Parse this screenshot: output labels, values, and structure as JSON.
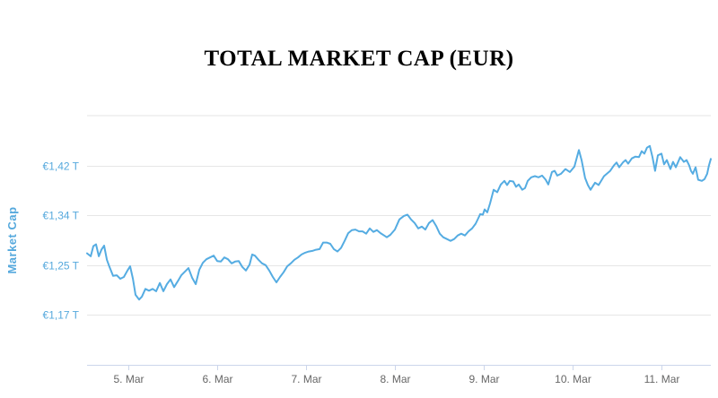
{
  "title": "TOTAL MARKET CAP (EUR)",
  "colors": {
    "line": "#55ACE2",
    "y_label_text": "#56A9DD",
    "x_label_text": "#666666",
    "gridline": "#e6e6e6",
    "axis_line": "#ccd6eb",
    "title_text": "#000000",
    "background": "#ffffff"
  },
  "chart_data": {
    "type": "line",
    "title": "TOTAL MARKET CAP (EUR)",
    "ylabel": "Market Cap",
    "xlabel": "",
    "unit": "EUR trillions",
    "grid": true,
    "legend": "none",
    "ylim": [
      1.084,
      1.504
    ],
    "xlim": [
      -0.465,
      6.556
    ],
    "y_ticks": [
      {
        "label": "€1,17 T",
        "value": 1.168
      },
      {
        "label": "€1,25 T",
        "value": 1.252
      },
      {
        "label": "€1,34 T",
        "value": 1.336
      },
      {
        "label": "€1,42 T",
        "value": 1.42
      }
    ],
    "x_ticks": [
      {
        "label": "5. Mar",
        "value": 0
      },
      {
        "label": "6. Mar",
        "value": 1
      },
      {
        "label": "7. Mar",
        "value": 2
      },
      {
        "label": "8. Mar",
        "value": 3
      },
      {
        "label": "9. Mar",
        "value": 4
      },
      {
        "label": "10. Mar",
        "value": 5
      },
      {
        "label": "11. Mar",
        "value": 6
      }
    ],
    "x_unit": "days since 5 Mar 00:00",
    "points": [
      [
        -0.465,
        1.272
      ],
      [
        -0.424,
        1.267
      ],
      [
        -0.394,
        1.284
      ],
      [
        -0.364,
        1.287
      ],
      [
        -0.333,
        1.267
      ],
      [
        -0.303,
        1.278
      ],
      [
        -0.273,
        1.285
      ],
      [
        -0.242,
        1.261
      ],
      [
        -0.212,
        1.249
      ],
      [
        -0.172,
        1.234
      ],
      [
        -0.131,
        1.235
      ],
      [
        -0.091,
        1.229
      ],
      [
        -0.051,
        1.232
      ],
      [
        -0.01,
        1.243
      ],
      [
        0.02,
        1.25
      ],
      [
        0.051,
        1.229
      ],
      [
        0.081,
        1.202
      ],
      [
        0.121,
        1.194
      ],
      [
        0.152,
        1.199
      ],
      [
        0.192,
        1.212
      ],
      [
        0.232,
        1.209
      ],
      [
        0.273,
        1.212
      ],
      [
        0.313,
        1.208
      ],
      [
        0.354,
        1.222
      ],
      [
        0.394,
        1.208
      ],
      [
        0.434,
        1.22
      ],
      [
        0.475,
        1.228
      ],
      [
        0.515,
        1.215
      ],
      [
        0.556,
        1.225
      ],
      [
        0.596,
        1.235
      ],
      [
        0.636,
        1.241
      ],
      [
        0.677,
        1.247
      ],
      [
        0.717,
        1.231
      ],
      [
        0.758,
        1.22
      ],
      [
        0.798,
        1.244
      ],
      [
        0.838,
        1.256
      ],
      [
        0.879,
        1.262
      ],
      [
        0.919,
        1.265
      ],
      [
        0.96,
        1.268
      ],
      [
        1.0,
        1.259
      ],
      [
        1.04,
        1.258
      ],
      [
        1.081,
        1.265
      ],
      [
        1.121,
        1.262
      ],
      [
        1.162,
        1.255
      ],
      [
        1.202,
        1.258
      ],
      [
        1.242,
        1.259
      ],
      [
        1.283,
        1.249
      ],
      [
        1.323,
        1.243
      ],
      [
        1.364,
        1.253
      ],
      [
        1.394,
        1.27
      ],
      [
        1.424,
        1.268
      ],
      [
        1.465,
        1.261
      ],
      [
        1.505,
        1.255
      ],
      [
        1.545,
        1.252
      ],
      [
        1.586,
        1.243
      ],
      [
        1.626,
        1.232
      ],
      [
        1.667,
        1.223
      ],
      [
        1.707,
        1.232
      ],
      [
        1.747,
        1.24
      ],
      [
        1.788,
        1.25
      ],
      [
        1.828,
        1.255
      ],
      [
        1.869,
        1.261
      ],
      [
        1.909,
        1.265
      ],
      [
        1.949,
        1.27
      ],
      [
        1.99,
        1.273
      ],
      [
        2.03,
        1.275
      ],
      [
        2.071,
        1.276
      ],
      [
        2.111,
        1.278
      ],
      [
        2.152,
        1.279
      ],
      [
        2.192,
        1.29
      ],
      [
        2.232,
        1.29
      ],
      [
        2.273,
        1.288
      ],
      [
        2.313,
        1.279
      ],
      [
        2.354,
        1.275
      ],
      [
        2.394,
        1.281
      ],
      [
        2.434,
        1.293
      ],
      [
        2.475,
        1.306
      ],
      [
        2.515,
        1.311
      ],
      [
        2.556,
        1.312
      ],
      [
        2.596,
        1.309
      ],
      [
        2.636,
        1.309
      ],
      [
        2.677,
        1.305
      ],
      [
        2.717,
        1.314
      ],
      [
        2.758,
        1.308
      ],
      [
        2.798,
        1.311
      ],
      [
        2.838,
        1.306
      ],
      [
        2.879,
        1.302
      ],
      [
        2.909,
        1.299
      ],
      [
        2.949,
        1.303
      ],
      [
        3.0,
        1.312
      ],
      [
        3.051,
        1.329
      ],
      [
        3.101,
        1.335
      ],
      [
        3.141,
        1.337
      ],
      [
        3.182,
        1.329
      ],
      [
        3.222,
        1.323
      ],
      [
        3.263,
        1.314
      ],
      [
        3.303,
        1.317
      ],
      [
        3.343,
        1.312
      ],
      [
        3.384,
        1.323
      ],
      [
        3.424,
        1.328
      ],
      [
        3.465,
        1.318
      ],
      [
        3.505,
        1.305
      ],
      [
        3.545,
        1.299
      ],
      [
        3.586,
        1.296
      ],
      [
        3.626,
        1.293
      ],
      [
        3.667,
        1.296
      ],
      [
        3.707,
        1.302
      ],
      [
        3.747,
        1.305
      ],
      [
        3.788,
        1.302
      ],
      [
        3.828,
        1.309
      ],
      [
        3.869,
        1.314
      ],
      [
        3.909,
        1.322
      ],
      [
        3.939,
        1.331
      ],
      [
        3.96,
        1.338
      ],
      [
        3.99,
        1.337
      ],
      [
        4.01,
        1.346
      ],
      [
        4.04,
        1.341
      ],
      [
        4.071,
        1.356
      ],
      [
        4.111,
        1.379
      ],
      [
        4.152,
        1.375
      ],
      [
        4.192,
        1.388
      ],
      [
        4.232,
        1.394
      ],
      [
        4.263,
        1.387
      ],
      [
        4.293,
        1.394
      ],
      [
        4.333,
        1.393
      ],
      [
        4.364,
        1.384
      ],
      [
        4.394,
        1.388
      ],
      [
        4.434,
        1.379
      ],
      [
        4.465,
        1.382
      ],
      [
        4.495,
        1.394
      ],
      [
        4.535,
        1.4
      ],
      [
        4.576,
        1.402
      ],
      [
        4.616,
        1.4
      ],
      [
        4.657,
        1.403
      ],
      [
        4.697,
        1.396
      ],
      [
        4.727,
        1.388
      ],
      [
        4.768,
        1.409
      ],
      [
        4.798,
        1.411
      ],
      [
        4.828,
        1.403
      ],
      [
        4.869,
        1.406
      ],
      [
        4.919,
        1.414
      ],
      [
        4.97,
        1.409
      ],
      [
        5.02,
        1.418
      ],
      [
        5.051,
        1.435
      ],
      [
        5.071,
        1.446
      ],
      [
        5.101,
        1.429
      ],
      [
        5.141,
        1.399
      ],
      [
        5.172,
        1.387
      ],
      [
        5.202,
        1.379
      ],
      [
        5.253,
        1.391
      ],
      [
        5.293,
        1.387
      ],
      [
        5.354,
        1.402
      ],
      [
        5.424,
        1.411
      ],
      [
        5.465,
        1.42
      ],
      [
        5.495,
        1.425
      ],
      [
        5.525,
        1.417
      ],
      [
        5.566,
        1.425
      ],
      [
        5.596,
        1.429
      ],
      [
        5.626,
        1.423
      ],
      [
        5.667,
        1.432
      ],
      [
        5.707,
        1.435
      ],
      [
        5.747,
        1.434
      ],
      [
        5.778,
        1.444
      ],
      [
        5.808,
        1.44
      ],
      [
        5.838,
        1.45
      ],
      [
        5.869,
        1.453
      ],
      [
        5.899,
        1.434
      ],
      [
        5.929,
        1.411
      ],
      [
        5.96,
        1.437
      ],
      [
        6.0,
        1.44
      ],
      [
        6.03,
        1.422
      ],
      [
        6.061,
        1.429
      ],
      [
        6.101,
        1.414
      ],
      [
        6.131,
        1.426
      ],
      [
        6.162,
        1.417
      ],
      [
        6.212,
        1.434
      ],
      [
        6.253,
        1.426
      ],
      [
        6.283,
        1.429
      ],
      [
        6.313,
        1.42
      ],
      [
        6.333,
        1.411
      ],
      [
        6.354,
        1.406
      ],
      [
        6.384,
        1.417
      ],
      [
        6.414,
        1.396
      ],
      [
        6.455,
        1.394
      ],
      [
        6.485,
        1.397
      ],
      [
        6.515,
        1.406
      ],
      [
        6.535,
        1.42
      ],
      [
        6.556,
        1.431
      ]
    ]
  }
}
